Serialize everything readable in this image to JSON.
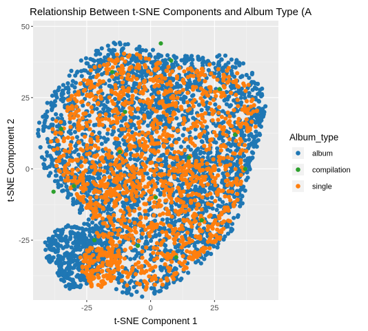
{
  "chart_data": {
    "type": "scatter",
    "title": "Relationship Between t-SNE Components and Album Type (A",
    "xlabel": "t-SNE Component 1",
    "ylabel": "t-SNE Component 2",
    "xlim": [
      -46,
      50
    ],
    "ylim": [
      -46,
      52
    ],
    "x_ticks": [
      -25,
      0,
      25
    ],
    "y_ticks": [
      -25,
      0,
      25,
      50
    ],
    "grid": true,
    "legend": {
      "title": "Album_type",
      "position": "right",
      "entries": [
        "album",
        "compilation",
        "single"
      ]
    },
    "series": [
      {
        "name": "album",
        "color": "#1f77b4"
      },
      {
        "name": "compilation",
        "color": "#2ca02c"
      },
      {
        "name": "single",
        "color": "#ff7f0e"
      }
    ],
    "point_groups": [
      {
        "series": "album",
        "shape": "cloud",
        "cx": 1,
        "cy": 4,
        "rx": 42,
        "ry": 43,
        "n": 2600
      },
      {
        "series": "album",
        "shape": "cluster",
        "cx": -29,
        "cy": -30,
        "rx": 12,
        "ry": 11,
        "n": 420
      },
      {
        "series": "album",
        "shape": "cluster",
        "cx": 41,
        "cy": 19,
        "rx": 3.5,
        "ry": 3,
        "n": 45
      },
      {
        "series": "single",
        "shape": "cloud",
        "cx": 2,
        "cy": 3,
        "rx": 38,
        "ry": 40,
        "n": 1500
      },
      {
        "series": "single",
        "shape": "cluster",
        "cx": -20,
        "cy": -34,
        "rx": 8,
        "ry": 7,
        "n": 130
      },
      {
        "series": "compilation",
        "shape": "points",
        "x": [
          -30,
          -35,
          -15,
          -10,
          2,
          10,
          15,
          33,
          37,
          -38,
          -5,
          20,
          -22,
          27,
          8,
          -12,
          4
        ],
        "y": [
          -6,
          14,
          34,
          20,
          -10,
          -31,
          4,
          12,
          0,
          -8,
          -27,
          -18,
          -25,
          28,
          38,
          6,
          44
        ]
      }
    ]
  }
}
